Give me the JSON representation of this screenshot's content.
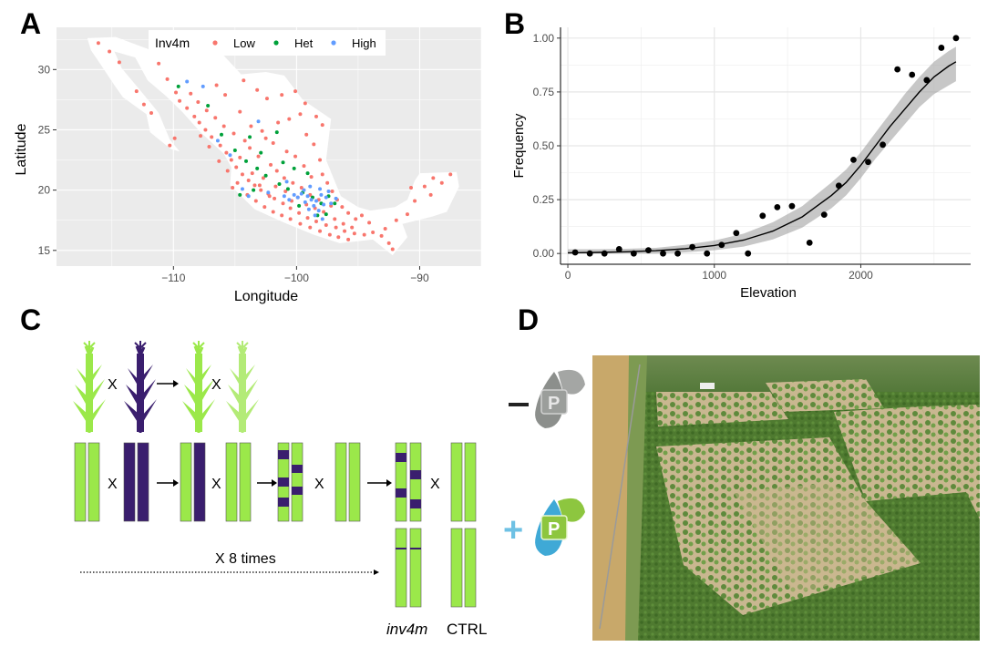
{
  "panels": {
    "A": {
      "letter": "A"
    },
    "B": {
      "letter": "B"
    },
    "C": {
      "letter": "C"
    },
    "D": {
      "letter": "D"
    }
  },
  "colors": {
    "low": "#F8766D",
    "het": "#00A13A",
    "high": "#619CFF",
    "plant_green": "#9BE84A",
    "plant_purple": "#3A1E6E",
    "panel_bg": "#EBEBEB"
  },
  "chart_data": [
    {
      "type": "scatter",
      "panel": "A",
      "xlabel": "Longitude",
      "ylabel": "Latitude",
      "xlim": [
        -119.5,
        -85
      ],
      "ylim": [
        13.7,
        33.5
      ],
      "xticks": [
        -110,
        -100,
        -90
      ],
      "xtick_labels": [
        "−110",
        "−100",
        "−90"
      ],
      "yticks": [
        15,
        20,
        25,
        30
      ],
      "yticks_labels": [
        "15",
        "20",
        "25",
        "30"
      ],
      "grid": true,
      "legend": {
        "title": "Inv4m",
        "placement": "top",
        "entries": [
          {
            "label": "Low",
            "color": "#F8766D"
          },
          {
            "label": "Het",
            "color": "#00A13A"
          },
          {
            "label": "High",
            "color": "#619CFF"
          }
        ]
      },
      "series": [
        {
          "name": "Low",
          "color": "#F8766D",
          "points": [
            [
              -111.2,
              30.5
            ],
            [
              -110.5,
              29.2
            ],
            [
              -109.8,
              28.1
            ],
            [
              -109.5,
              27.4
            ],
            [
              -108.9,
              26.8
            ],
            [
              -108.3,
              26.1
            ],
            [
              -107.9,
              25.6
            ],
            [
              -107.4,
              25.0
            ],
            [
              -106.9,
              24.4
            ],
            [
              -106.2,
              23.7
            ],
            [
              -105.7,
              23.1
            ],
            [
              -105.3,
              22.5
            ],
            [
              -104.9,
              21.9
            ],
            [
              -104.4,
              21.3
            ],
            [
              -103.9,
              20.8
            ],
            [
              -103.4,
              20.4
            ],
            [
              -102.9,
              20.0
            ],
            [
              -102.3,
              19.7
            ],
            [
              -101.8,
              19.3
            ],
            [
              -101.1,
              18.9
            ],
            [
              -100.5,
              18.5
            ],
            [
              -99.8,
              18.1
            ],
            [
              -99.1,
              17.7
            ],
            [
              -98.4,
              17.4
            ],
            [
              -97.6,
              17.1
            ],
            [
              -96.8,
              16.9
            ],
            [
              -96.1,
              16.6
            ],
            [
              -95.3,
              16.4
            ],
            [
              -94.5,
              16.3
            ],
            [
              -93.8,
              16.5
            ],
            [
              -93.1,
              16.2
            ],
            [
              -92.5,
              15.6
            ],
            [
              -92.2,
              15.1
            ],
            [
              -92.8,
              16.8
            ],
            [
              -91.9,
              17.5
            ],
            [
              -91.0,
              18.0
            ],
            [
              -90.4,
              19.1
            ],
            [
              -89.6,
              20.3
            ],
            [
              -88.9,
              21.0
            ],
            [
              -88.2,
              20.6
            ],
            [
              -87.5,
              21.3
            ],
            [
              -89.1,
              19.6
            ],
            [
              -90.7,
              20.2
            ],
            [
              -106.5,
              28.7
            ],
            [
              -105.8,
              27.9
            ],
            [
              -104.6,
              26.5
            ],
            [
              -103.7,
              25.3
            ],
            [
              -102.8,
              24.9
            ],
            [
              -101.5,
              25.6
            ],
            [
              -100.6,
              25.9
            ],
            [
              -99.7,
              26.3
            ],
            [
              -99.2,
              24.6
            ],
            [
              -98.6,
              23.8
            ],
            [
              -98.1,
              22.5
            ],
            [
              -97.9,
              21.3
            ],
            [
              -97.5,
              20.6
            ],
            [
              -97.1,
              19.9
            ],
            [
              -96.7,
              19.2
            ],
            [
              -96.3,
              18.6
            ],
            [
              -95.8,
              18.1
            ],
            [
              -95.2,
              17.6
            ],
            [
              -94.7,
              17.9
            ],
            [
              -94.1,
              17.3
            ],
            [
              -102.1,
              22.1
            ],
            [
              -101.6,
              21.6
            ],
            [
              -101.0,
              21.0
            ],
            [
              -100.3,
              20.6
            ],
            [
              -99.6,
              20.2
            ],
            [
              -98.9,
              19.6
            ],
            [
              -98.2,
              19.2
            ],
            [
              -103.1,
              22.8
            ],
            [
              -103.8,
              23.5
            ],
            [
              -104.2,
              24.1
            ],
            [
              -105.1,
              24.7
            ],
            [
              -105.9,
              25.3
            ],
            [
              -106.6,
              26.0
            ],
            [
              -107.3,
              26.6
            ],
            [
              -108.0,
              27.3
            ],
            [
              -108.6,
              28.0
            ],
            [
              -100.8,
              23.2
            ],
            [
              -100.1,
              22.8
            ],
            [
              -99.4,
              22.0
            ],
            [
              -98.8,
              21.1
            ],
            [
              -101.9,
              23.9
            ],
            [
              -102.5,
              24.3
            ],
            [
              -104.8,
              20.6
            ],
            [
              -105.2,
              20.2
            ],
            [
              -104.0,
              19.6
            ],
            [
              -103.3,
              19.1
            ],
            [
              -102.6,
              18.6
            ],
            [
              -101.9,
              18.2
            ],
            [
              -101.2,
              17.9
            ],
            [
              -100.5,
              17.6
            ],
            [
              -99.7,
              17.2
            ],
            [
              -98.9,
              16.9
            ],
            [
              -98.1,
              16.6
            ],
            [
              -97.3,
              16.3
            ],
            [
              -96.6,
              16.1
            ],
            [
              -95.8,
              15.9
            ],
            [
              -109.9,
              24.3
            ],
            [
              -110.3,
              23.7
            ],
            [
              -111.8,
              26.4
            ],
            [
              -112.4,
              27.1
            ],
            [
              -113.0,
              28.2
            ],
            [
              -114.4,
              30.6
            ],
            [
              -115.2,
              31.5
            ],
            [
              -116.1,
              32.2
            ],
            [
              -104.3,
              29.1
            ],
            [
              -103.2,
              28.3
            ],
            [
              -102.4,
              27.6
            ],
            [
              -101.2,
              27.9
            ],
            [
              -100.1,
              28.2
            ],
            [
              -99.3,
              27.2
            ],
            [
              -98.4,
              26.1
            ],
            [
              -97.9,
              25.4
            ],
            [
              -103.6,
              21.4
            ],
            [
              -102.7,
              21.0
            ],
            [
              -101.7,
              20.3
            ],
            [
              -100.9,
              19.9
            ],
            [
              -99.9,
              19.4
            ],
            [
              -99.2,
              18.8
            ],
            [
              -98.5,
              18.5
            ],
            [
              -97.8,
              18.2
            ],
            [
              -97.2,
              18.7
            ],
            [
              -96.9,
              17.6
            ],
            [
              -96.2,
              17.2
            ],
            [
              -95.5,
              16.9
            ],
            [
              -103.0,
              20.4
            ],
            [
              -102.2,
              19.5
            ],
            [
              -100.4,
              19.1
            ],
            [
              -104.6,
              22.7
            ],
            [
              -105.6,
              21.6
            ],
            [
              -106.3,
              22.4
            ],
            [
              -107.1,
              23.6
            ],
            [
              -107.8,
              24.5
            ]
          ]
        },
        {
          "name": "Het",
          "color": "#00A13A",
          "points": [
            [
              -109.6,
              28.6
            ],
            [
              -107.2,
              27.0
            ],
            [
              -104.1,
              22.4
            ],
            [
              -103.2,
              21.8
            ],
            [
              -102.5,
              21.2
            ],
            [
              -101.4,
              20.5
            ],
            [
              -100.7,
              20.1
            ],
            [
              -99.5,
              19.8
            ],
            [
              -98.7,
              19.4
            ],
            [
              -98.0,
              18.9
            ],
            [
              -97.4,
              19.5
            ],
            [
              -96.9,
              18.9
            ],
            [
              -103.8,
              24.4
            ],
            [
              -102.9,
              23.1
            ],
            [
              -101.1,
              22.3
            ],
            [
              -100.2,
              21.8
            ],
            [
              -99.1,
              21.4
            ],
            [
              -103.5,
              20.0
            ],
            [
              -104.6,
              19.6
            ],
            [
              -97.6,
              18.0
            ],
            [
              -105.0,
              23.3
            ],
            [
              -106.1,
              24.6
            ],
            [
              -99.8,
              18.7
            ],
            [
              -98.3,
              17.9
            ],
            [
              -101.6,
              24.8
            ]
          ]
        },
        {
          "name": "High",
          "color": "#619CFF",
          "points": [
            [
              -107.6,
              28.6
            ],
            [
              -106.4,
              24.1
            ],
            [
              -99.6,
              19.7
            ],
            [
              -99.1,
              19.5
            ],
            [
              -98.8,
              19.2
            ],
            [
              -98.4,
              19.1
            ],
            [
              -98.0,
              19.6
            ],
            [
              -97.6,
              19.4
            ],
            [
              -99.3,
              19.0
            ],
            [
              -98.6,
              18.7
            ],
            [
              -98.2,
              18.3
            ],
            [
              -97.8,
              18.8
            ],
            [
              -99.9,
              19.4
            ],
            [
              -100.2,
              19.6
            ],
            [
              -99.4,
              20.0
            ],
            [
              -98.9,
              20.3
            ],
            [
              -98.1,
              20.1
            ],
            [
              -97.4,
              19.9
            ],
            [
              -97.2,
              18.9
            ],
            [
              -96.8,
              19.3
            ],
            [
              -100.6,
              19.2
            ],
            [
              -101.0,
              19.5
            ],
            [
              -102.3,
              19.8
            ],
            [
              -103.9,
              19.5
            ],
            [
              -104.4,
              20.1
            ],
            [
              -100.8,
              20.7
            ],
            [
              -99.0,
              18.4
            ],
            [
              -98.5,
              17.9
            ],
            [
              -97.9,
              17.6
            ],
            [
              -105.4,
              22.9
            ],
            [
              -103.1,
              25.7
            ],
            [
              -108.9,
              29.0
            ]
          ]
        }
      ]
    },
    {
      "type": "scatter",
      "panel": "B",
      "xlabel": "Elevation",
      "ylabel": "Frequency",
      "xlim": [
        -50,
        2750
      ],
      "ylim": [
        -0.05,
        1.05
      ],
      "xticks": [
        0,
        1000,
        2000
      ],
      "xtick_labels": [
        "0",
        "1000",
        "2000"
      ],
      "yticks": [
        0,
        0.25,
        0.5,
        0.75,
        1
      ],
      "ytick_labels": [
        "0.00",
        "0.25",
        "0.50",
        "0.75",
        "1.00"
      ],
      "grid": true,
      "points": [
        [
          50,
          0.005
        ],
        [
          150,
          0.0
        ],
        [
          250,
          0.0
        ],
        [
          350,
          0.02
        ],
        [
          450,
          0.0
        ],
        [
          550,
          0.015
        ],
        [
          650,
          0.0
        ],
        [
          750,
          0.0
        ],
        [
          850,
          0.03
        ],
        [
          950,
          0.0
        ],
        [
          1050,
          0.04
        ],
        [
          1150,
          0.095
        ],
        [
          1230,
          0.0
        ],
        [
          1330,
          0.175
        ],
        [
          1430,
          0.215
        ],
        [
          1530,
          0.22
        ],
        [
          1650,
          0.05
        ],
        [
          1750,
          0.18
        ],
        [
          1850,
          0.315
        ],
        [
          1950,
          0.435
        ],
        [
          2050,
          0.425
        ],
        [
          2150,
          0.505
        ],
        [
          2250,
          0.855
        ],
        [
          2350,
          0.83
        ],
        [
          2450,
          0.805
        ],
        [
          2550,
          0.955
        ],
        [
          2650,
          1.0
        ]
      ],
      "fit": {
        "model": "logistic",
        "x": [
          0,
          200,
          400,
          600,
          800,
          1000,
          1200,
          1400,
          1600,
          1800,
          1900,
          2000,
          2100,
          2200,
          2300,
          2400,
          2500,
          2600,
          2650
        ],
        "y": [
          0.003,
          0.005,
          0.008,
          0.013,
          0.022,
          0.037,
          0.062,
          0.104,
          0.17,
          0.27,
          0.33,
          0.41,
          0.5,
          0.59,
          0.67,
          0.75,
          0.82,
          0.87,
          0.89
        ],
        "ci_low": [
          0.0,
          0.0,
          0.0,
          0.0,
          0.005,
          0.015,
          0.032,
          0.065,
          0.12,
          0.21,
          0.27,
          0.35,
          0.44,
          0.52,
          0.6,
          0.68,
          0.74,
          0.78,
          0.8
        ],
        "ci_high": [
          0.02,
          0.02,
          0.022,
          0.026,
          0.04,
          0.06,
          0.092,
          0.145,
          0.22,
          0.33,
          0.39,
          0.47,
          0.56,
          0.65,
          0.74,
          0.82,
          0.89,
          0.94,
          0.96
        ]
      }
    }
  ],
  "panelC": {
    "cross_symbol": "X",
    "repeat_label": "X 8 times",
    "label_inv4m": "inv4m",
    "label_ctrl": "CTRL"
  },
  "panelD": {
    "minus_symbol": "−",
    "plus_symbol": "+",
    "phosphorus_letter": "P",
    "minus_icon": "phosphorus-depleted-icon",
    "plus_icon": "phosphorus-added-icon",
    "photo": "aerial-field-photo"
  }
}
